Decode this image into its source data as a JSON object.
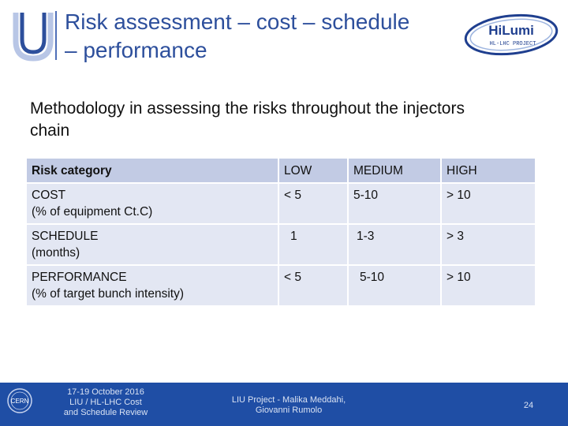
{
  "header": {
    "title_line1": "Risk assessment – cost – schedule",
    "title_line2": "– performance",
    "logo_text_hilumi": "HiLumi",
    "logo_text_project": "HL-LHC PROJECT"
  },
  "subtitle_line1": "Methodology in assessing the risks throughout the injectors",
  "subtitle_line2": "chain",
  "table": {
    "header": [
      "Risk category",
      "LOW",
      "MEDIUM",
      "HIGH"
    ],
    "rows": [
      {
        "cat1": "COST",
        "cat2": "(% of equipment Ct.C)",
        "low": "< 5",
        "medium": "5-10",
        "high": "> 10"
      },
      {
        "cat1": "SCHEDULE",
        "cat2": "(months)",
        "low": "1",
        "medium": "1-3",
        "high": "> 3"
      },
      {
        "cat1": "PERFORMANCE",
        "cat2": "(% of target bunch intensity)",
        "low": "< 5",
        "medium": "5-10",
        "high": "> 10"
      }
    ]
  },
  "footer": {
    "cern_label": "CERN",
    "left_line1": "17-19 October 2016",
    "left_line2": "LIU / HL-LHC  Cost",
    "left_line3": "and Schedule Review",
    "mid_line1": "LIU Project - Malika Meddahi,",
    "mid_line2": "Giovanni Rumolo",
    "page": "24"
  },
  "colors": {
    "title": "#2d4f9c",
    "table_header": "#c2cbe4",
    "table_row": "#e3e7f3",
    "footer_bg": "#1f4ea5"
  }
}
